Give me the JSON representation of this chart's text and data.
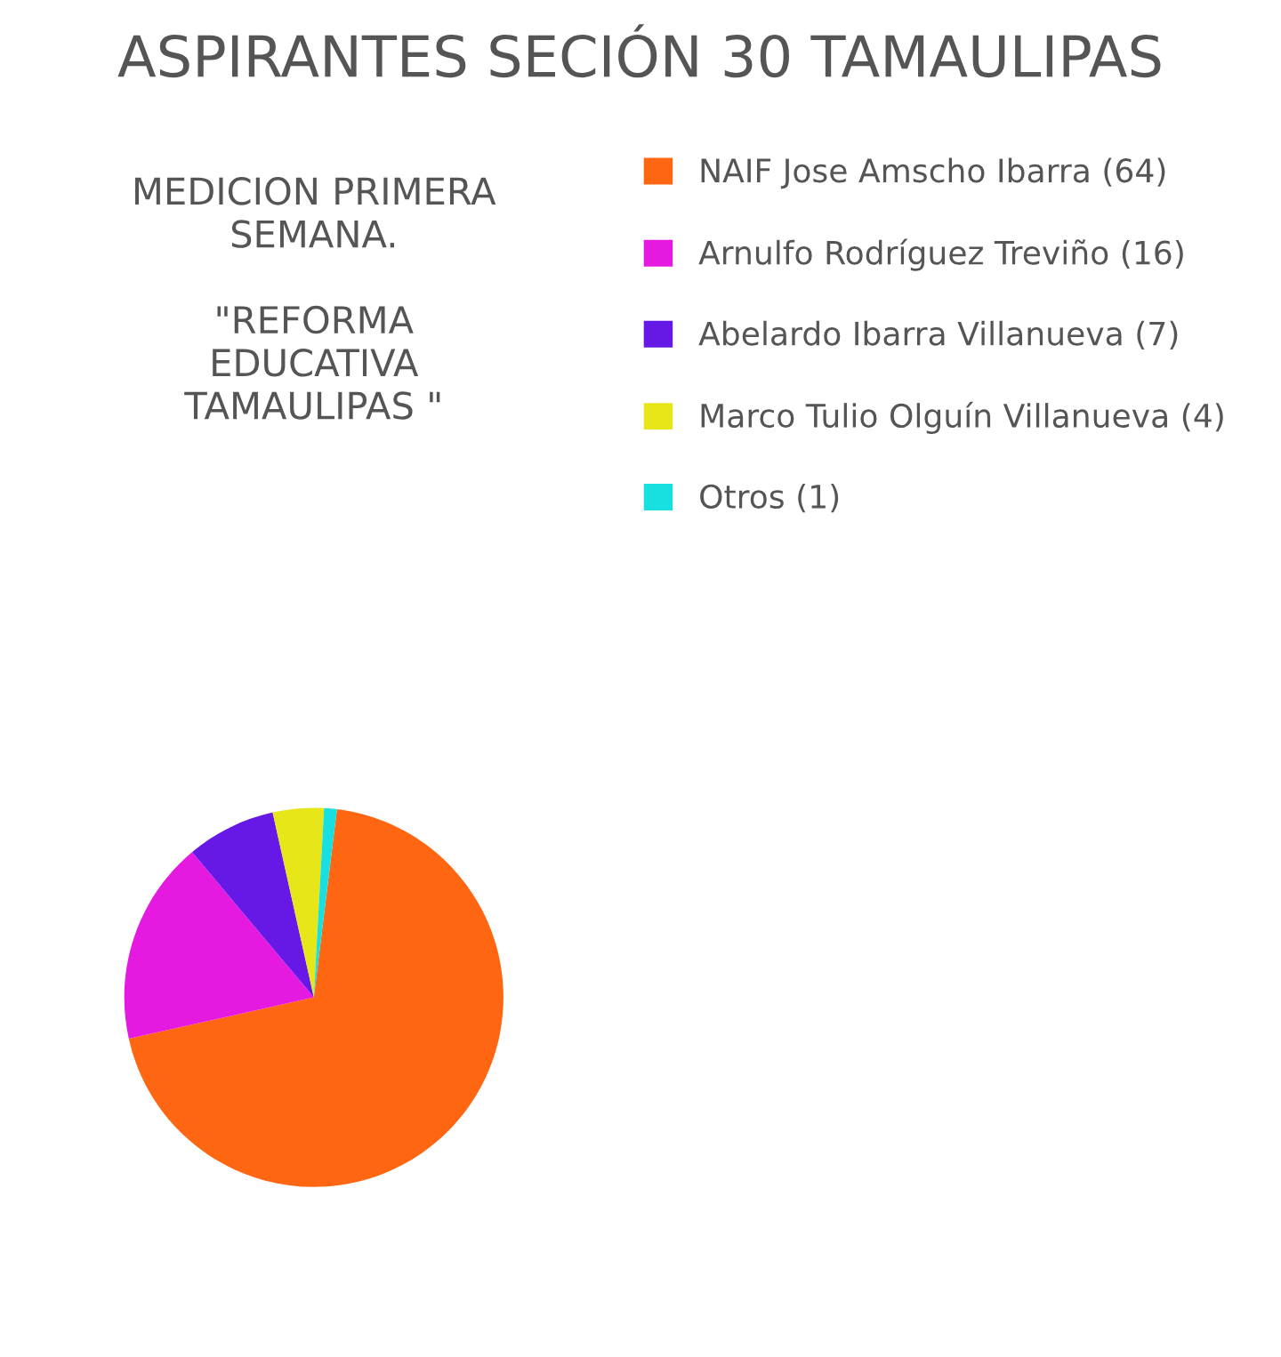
{
  "chart_data": {
    "type": "pie",
    "title": "ASPIRANTES SECIÓN 30 TAMAULIPAS",
    "annotations": [
      "MEDICION PRIMERA\nSEMANA.\n\n\"REFORMA\nEDUCATIVA\nTAMAULIPAS \""
    ],
    "categories": [
      "NAIF Jose Amscho Ibarra (64)",
      "Arnulfo Rodríguez Treviño (16)",
      "Abelardo Ibarra Villanueva (7)",
      "Marco Tulio Olguín Villanueva (4)",
      "Otros (1)"
    ],
    "values": [
      64,
      16,
      7,
      4,
      1
    ],
    "colors": [
      "#ff6611",
      "#e619e0",
      "#6619e6",
      "#e6e619",
      "#19e0e0"
    ],
    "legend": "top right"
  }
}
